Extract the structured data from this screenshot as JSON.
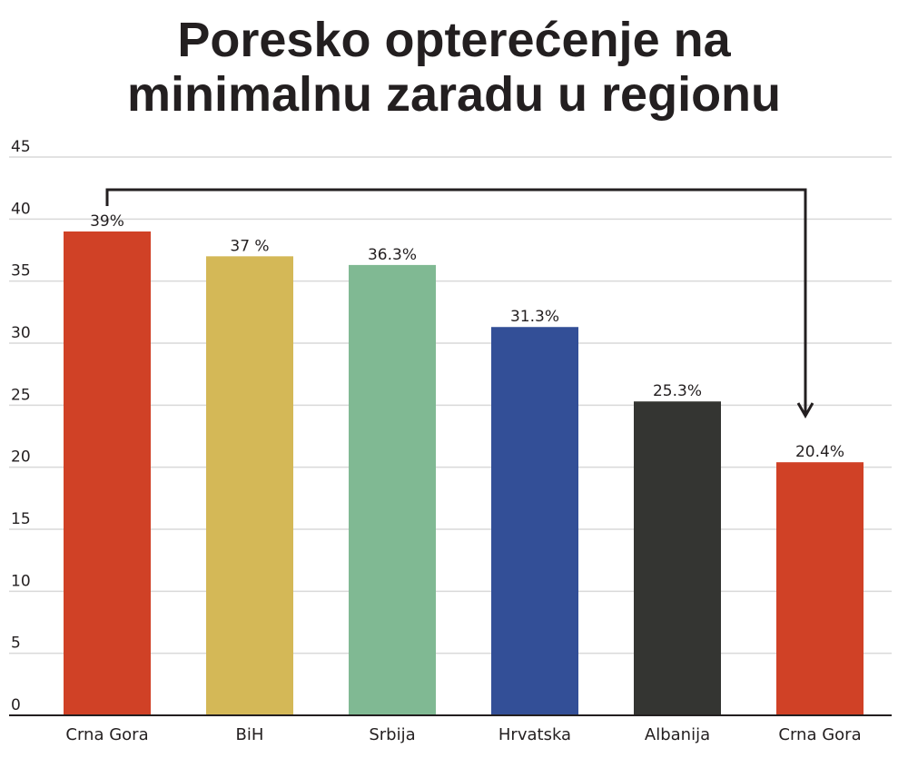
{
  "chart_data": {
    "type": "bar",
    "title_lines": [
      "Poresko opterećenje na",
      "minimalnu zaradu u regionu"
    ],
    "categories": [
      "Crna Gora",
      "BiH",
      "Srbija",
      "Hrvatska",
      "Albanija",
      "Crna Gora"
    ],
    "values": [
      39,
      37,
      36.3,
      31.3,
      25.3,
      20.4
    ],
    "value_labels": [
      "39%",
      "37 %",
      "36.3%",
      "31.3%",
      "25.3%",
      "20.4%"
    ],
    "colors": [
      "#d04126",
      "#d4b857",
      "#80b993",
      "#334f97",
      "#343532",
      "#d04126"
    ],
    "xlabel": "",
    "ylabel": "",
    "ylim": [
      0,
      45
    ],
    "yticks": [
      0,
      5,
      10,
      15,
      20,
      25,
      30,
      35,
      40,
      45
    ],
    "grid": true,
    "legend": "none",
    "annotation": {
      "type": "arrow",
      "from_category": 0,
      "to_category": 5
    }
  }
}
